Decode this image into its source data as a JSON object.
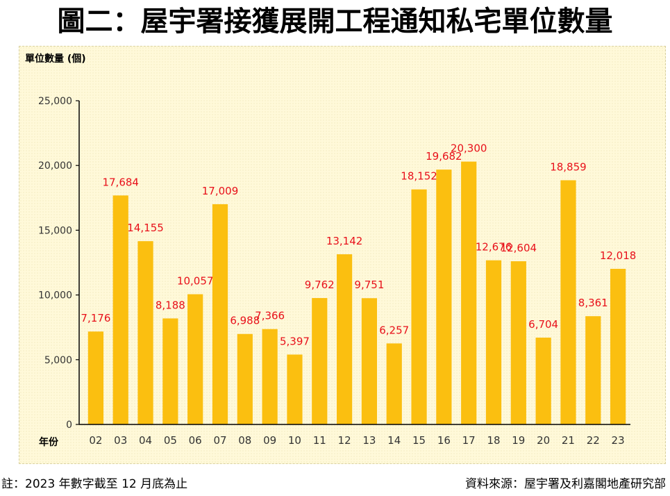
{
  "title": "圖二：屋宇署接獲展開工程通知私宅單位數量",
  "footer": {
    "note": "註：2023 年數字截至 12 月底為止",
    "source": "資料來源：屋宇署及利嘉閣地產研究部"
  },
  "colors": {
    "bar": "#fbbf10",
    "data_label": "#e8101a",
    "axis": "#000000",
    "panel_bg": "#fff9d9"
  },
  "chart_data": {
    "type": "bar",
    "title": "圖二：屋宇署接獲展開工程通知私宅單位數量",
    "ylabel": "單位數量 (個)",
    "xlabel": "年份",
    "ylim": [
      0,
      25000
    ],
    "yticks": [
      0,
      5000,
      10000,
      15000,
      20000,
      25000
    ],
    "ytick_labels": [
      "0",
      "5,000",
      "10,000",
      "15,000",
      "20,000",
      "25,000"
    ],
    "categories": [
      "02",
      "03",
      "04",
      "05",
      "06",
      "07",
      "08",
      "09",
      "10",
      "11",
      "12",
      "13",
      "14",
      "15",
      "16",
      "17",
      "18",
      "19",
      "20",
      "21",
      "22",
      "23"
    ],
    "values": [
      7176,
      17684,
      14155,
      8188,
      10057,
      17009,
      6988,
      7366,
      5397,
      9762,
      13142,
      9751,
      6257,
      18152,
      19682,
      20300,
      12676,
      12604,
      6704,
      18859,
      8361,
      12018
    ],
    "data_labels": [
      "7,176",
      "17,684",
      "14,155",
      "8,188",
      "10,057",
      "17,009",
      "6,988",
      "7,366",
      "5,397",
      "9,762",
      "13,142",
      "9,751",
      "6,257",
      "18,152",
      "19,682",
      "20,300",
      "12,676",
      "12,604",
      "6,704",
      "18,859",
      "8,361",
      "12,018"
    ],
    "grid": false,
    "legend": "none"
  }
}
